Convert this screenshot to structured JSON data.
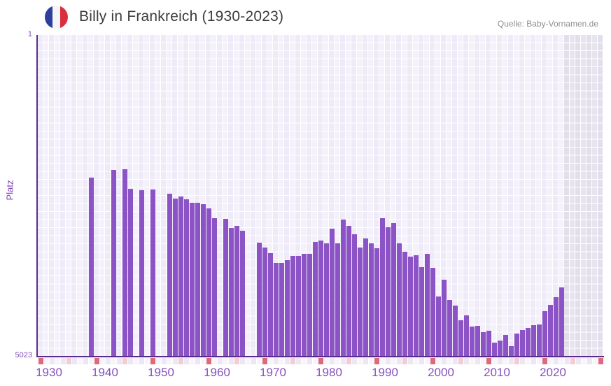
{
  "header": {
    "title": "Billy in Frankreich (1930-2023)",
    "source": "Quelle: Baby-Vornamen.de",
    "flag_icon": "france-flag-circle"
  },
  "chart_data": {
    "type": "bar",
    "title": "Billy in Frankreich (1930-2023)",
    "xlabel": "",
    "ylabel": "Platz",
    "y_axis": {
      "top_tick_label": "1",
      "bottom_tick_label": "5023",
      "min": 1,
      "max": 5023,
      "inverted": true
    },
    "x_axis": {
      "start_year": 1930,
      "end_year": 2030,
      "last_data_year": 2023,
      "decade_tick_labels": [
        "1930",
        "1940",
        "1950",
        "1960",
        "1970",
        "1980",
        "1990",
        "2000",
        "2010",
        "2020"
      ],
      "grid": true,
      "future_band_start_year": 2024
    },
    "legend": [],
    "colors": {
      "bar": "#8b53c5",
      "axis": "#5a2b8f",
      "decade_tick": "#df697b",
      "half_decade_tick": "#f3ccd7",
      "year_tick_even": "#ebe7f4",
      "year_tick_odd": "#f7f4fb",
      "grid_even": "#eeeaf7",
      "grid_odd": "#f4f1fb",
      "band_even": "#e2dfeb",
      "band_odd": "#e7e4ef",
      "label_purple": "#8550bf"
    },
    "series": [
      {
        "year": 1939,
        "rank": 2228
      },
      {
        "year": 1943,
        "rank": 2113
      },
      {
        "year": 1945,
        "rank": 2097
      },
      {
        "year": 1946,
        "rank": 2403
      },
      {
        "year": 1948,
        "rank": 2435
      },
      {
        "year": 1950,
        "rank": 2424
      },
      {
        "year": 1953,
        "rank": 2490
      },
      {
        "year": 1954,
        "rank": 2556
      },
      {
        "year": 1955,
        "rank": 2528
      },
      {
        "year": 1956,
        "rank": 2567
      },
      {
        "year": 1957,
        "rank": 2632
      },
      {
        "year": 1958,
        "rank": 2632
      },
      {
        "year": 1959,
        "rank": 2654
      },
      {
        "year": 1960,
        "rank": 2719
      },
      {
        "year": 1961,
        "rank": 2867
      },
      {
        "year": 1963,
        "rank": 2878
      },
      {
        "year": 1964,
        "rank": 3020
      },
      {
        "year": 1965,
        "rank": 2987
      },
      {
        "year": 1966,
        "rank": 3069
      },
      {
        "year": 1969,
        "rank": 3249
      },
      {
        "year": 1970,
        "rank": 3331
      },
      {
        "year": 1971,
        "rank": 3418
      },
      {
        "year": 1972,
        "rank": 3571
      },
      {
        "year": 1973,
        "rank": 3571
      },
      {
        "year": 1974,
        "rank": 3527
      },
      {
        "year": 1975,
        "rank": 3462
      },
      {
        "year": 1976,
        "rank": 3456
      },
      {
        "year": 1977,
        "rank": 3429
      },
      {
        "year": 1978,
        "rank": 3429
      },
      {
        "year": 1979,
        "rank": 3243
      },
      {
        "year": 1980,
        "rank": 3216
      },
      {
        "year": 1981,
        "rank": 3260
      },
      {
        "year": 1982,
        "rank": 3036
      },
      {
        "year": 1983,
        "rank": 3265
      },
      {
        "year": 1984,
        "rank": 2894
      },
      {
        "year": 1985,
        "rank": 2992
      },
      {
        "year": 1986,
        "rank": 3123
      },
      {
        "year": 1987,
        "rank": 3331
      },
      {
        "year": 1988,
        "rank": 3189
      },
      {
        "year": 1989,
        "rank": 3265
      },
      {
        "year": 1990,
        "rank": 3342
      },
      {
        "year": 1991,
        "rank": 2867
      },
      {
        "year": 1992,
        "rank": 3014
      },
      {
        "year": 1993,
        "rank": 2949
      },
      {
        "year": 1994,
        "rank": 3260
      },
      {
        "year": 1995,
        "rank": 3396
      },
      {
        "year": 1996,
        "rank": 3467
      },
      {
        "year": 1997,
        "rank": 3451
      },
      {
        "year": 1998,
        "rank": 3636
      },
      {
        "year": 1999,
        "rank": 3429
      },
      {
        "year": 2000,
        "rank": 3647
      },
      {
        "year": 2001,
        "rank": 4095
      },
      {
        "year": 2002,
        "rank": 3833
      },
      {
        "year": 2003,
        "rank": 4144
      },
      {
        "year": 2004,
        "rank": 4231
      },
      {
        "year": 2005,
        "rank": 4461
      },
      {
        "year": 2006,
        "rank": 4390
      },
      {
        "year": 2007,
        "rank": 4559
      },
      {
        "year": 2008,
        "rank": 4553
      },
      {
        "year": 2009,
        "rank": 4652
      },
      {
        "year": 2010,
        "rank": 4630
      },
      {
        "year": 2011,
        "rank": 4810
      },
      {
        "year": 2012,
        "rank": 4777
      },
      {
        "year": 2013,
        "rank": 4695
      },
      {
        "year": 2014,
        "rank": 4865
      },
      {
        "year": 2015,
        "rank": 4674
      },
      {
        "year": 2016,
        "rank": 4614
      },
      {
        "year": 2017,
        "rank": 4581
      },
      {
        "year": 2018,
        "rank": 4543
      },
      {
        "year": 2019,
        "rank": 4526
      },
      {
        "year": 2020,
        "rank": 4324
      },
      {
        "year": 2021,
        "rank": 4226
      },
      {
        "year": 2022,
        "rank": 4106
      },
      {
        "year": 2023,
        "rank": 3953
      }
    ]
  }
}
